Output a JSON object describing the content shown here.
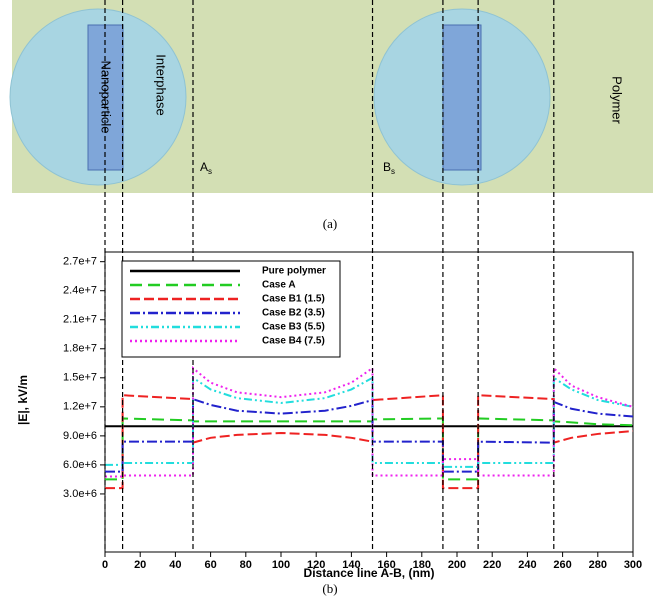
{
  "diagram": {
    "nanoparticle": "Nanoparticle",
    "interphase": "Interphase",
    "polymer": "Polymer",
    "point_a": "A",
    "point_a_sub": "s",
    "point_b": "B",
    "point_b_sub": "s",
    "caption": "(a)"
  },
  "chart_data": {
    "type": "line",
    "ylabel": "|E|, kV/m",
    "xlabel": "Distance line A-B, (nm)",
    "caption": "(b)",
    "x": [
      0,
      10,
      10,
      50,
      50,
      60,
      75,
      100,
      125,
      140,
      152,
      152,
      192,
      192,
      212,
      212,
      255,
      255,
      265,
      280,
      300
    ],
    "xlim": [
      0,
      300
    ],
    "xticks": [
      0,
      20,
      40,
      60,
      80,
      100,
      120,
      140,
      160,
      180,
      200,
      220,
      240,
      260,
      280,
      300
    ],
    "ylim": [
      -3000000,
      28000000
    ],
    "yticks": [
      {
        "value": 3000000,
        "label": "3.0e+6"
      },
      {
        "value": 6000000,
        "label": "6.0e+6"
      },
      {
        "value": 9000000,
        "label": "9.0e+6"
      },
      {
        "value": 12000000,
        "label": "1.2e+7"
      },
      {
        "value": 15000000,
        "label": "1.5e+7"
      },
      {
        "value": 18000000,
        "label": "1.8e+7"
      },
      {
        "value": 21000000,
        "label": "2.1e+7"
      },
      {
        "value": 24000000,
        "label": "2.4e+7"
      },
      {
        "value": 27000000,
        "label": "2.7e+7"
      }
    ],
    "boundaries": [
      0,
      10,
      50,
      152,
      192,
      212,
      255
    ],
    "legend": "upper left",
    "series": [
      {
        "name": "Pure polymer",
        "color": "#000000",
        "dash": "none",
        "values": [
          10000000,
          10000000,
          10000000,
          10000000,
          10000000,
          10000000,
          10000000,
          10000000,
          10000000,
          10000000,
          10000000,
          10000000,
          10000000,
          10000000,
          10000000,
          10000000,
          10000000,
          10000000,
          10000000,
          10000000,
          10000000
        ]
      },
      {
        "name": "Case A",
        "color": "#22cc22",
        "dash": "12,6",
        "values": [
          4500000,
          4500000,
          10800000,
          10600000,
          10500000,
          10500000,
          10500000,
          10500000,
          10500000,
          10500000,
          10500000,
          10700000,
          10800000,
          4500000,
          4500000,
          10800000,
          10600000,
          10500000,
          10400000,
          10200000,
          10100000
        ]
      },
      {
        "name": "Case B1 (1.5)",
        "color": "#ee2222",
        "dash": "10,4",
        "values": [
          3600000,
          3600000,
          13200000,
          12800000,
          8300000,
          8800000,
          9100000,
          9300000,
          9100000,
          8800000,
          8400000,
          12700000,
          13200000,
          3600000,
          3600000,
          13200000,
          12800000,
          8300000,
          8800000,
          9200000,
          9500000
        ]
      },
      {
        "name": "Case B2 (3.5)",
        "color": "#2222cc",
        "dash": "10,3,2,3",
        "values": [
          5300000,
          5300000,
          8400000,
          8400000,
          12800000,
          12200000,
          11600000,
          11300000,
          11600000,
          12100000,
          12700000,
          8400000,
          8400000,
          5300000,
          5300000,
          8400000,
          8300000,
          12500000,
          11800000,
          11300000,
          11000000
        ]
      },
      {
        "name": "Case B3 (5.5)",
        "color": "#22dddd",
        "dash": "8,3,2,3,2,3",
        "values": [
          6000000,
          6000000,
          6200000,
          6200000,
          15000000,
          13800000,
          12900000,
          12400000,
          12900000,
          13800000,
          15000000,
          6200000,
          6200000,
          5800000,
          5800000,
          6200000,
          6200000,
          15000000,
          13800000,
          12700000,
          12000000
        ]
      },
      {
        "name": "Case B4 (7.5)",
        "color": "#ee22ee",
        "dash": "2,3",
        "values": [
          4800000,
          4800000,
          4900000,
          4900000,
          16000000,
          14500000,
          13500000,
          13000000,
          13500000,
          14500000,
          16000000,
          4900000,
          4900000,
          6600000,
          6600000,
          4900000,
          4900000,
          16000000,
          14200000,
          13000000,
          12000000
        ]
      }
    ]
  }
}
